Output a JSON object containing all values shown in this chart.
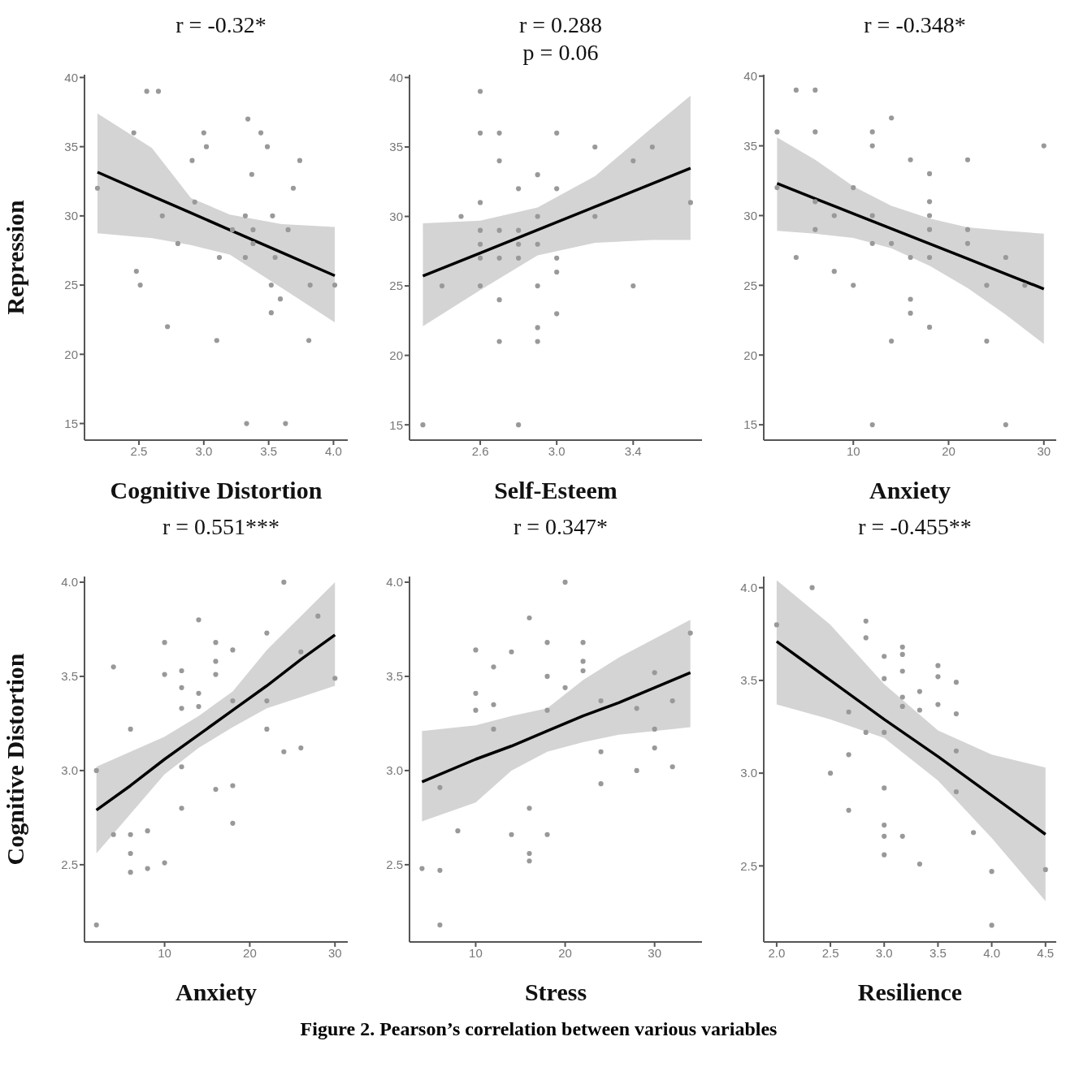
{
  "chart_data": [
    {
      "type": "scatter",
      "ylabel": "Repression",
      "xlabel": "Cognitive Distortion",
      "annotations": [
        "r = -0.32*"
      ],
      "xlim": [
        2.08,
        4.11
      ],
      "xticks": [
        2.5,
        {
          "value": 3,
          "label": "3.0"
        },
        3.5,
        {
          "value": 4,
          "label": "4.0"
        }
      ],
      "ylim": [
        13.8,
        40.2
      ],
      "yticks": [
        15,
        20,
        25,
        30,
        35,
        40
      ],
      "series": [
        {
          "type": "line",
          "color": "#000000",
          "line_style": "solid",
          "x": [
            2.18,
            2.6,
            2.9,
            3.2,
            3.6,
            4.01
          ],
          "values": [
            33.16,
            31.44,
            30.22,
            28.99,
            27.36,
            25.68
          ],
          "lower": [
            28.75,
            28.4,
            27.9,
            27.2,
            24.8,
            22.3
          ],
          "upper": [
            37.4,
            34.9,
            31.3,
            30.1,
            29.4,
            29.2
          ]
        },
        {
          "marker": "circle",
          "color": "#999999",
          "x": [
            2.56,
            2.65,
            3.34,
            2.46,
            3.0,
            3.44,
            3.02,
            3.49,
            2.91,
            3.74,
            3.37,
            2.18,
            3.69,
            2.93,
            2.68,
            3.32,
            3.53,
            3.22,
            3.38,
            3.65,
            2.8,
            3.38,
            3.12,
            3.32,
            3.55,
            2.48,
            2.51,
            3.52,
            3.82,
            4.01,
            3.59,
            3.52,
            2.72,
            3.1,
            3.81,
            3.33,
            3.63
          ],
          "values": [
            39,
            39,
            37,
            36,
            36,
            36,
            35,
            35,
            34,
            34,
            33,
            32,
            32,
            31,
            30,
            30,
            30,
            29,
            29,
            29,
            28,
            28,
            27,
            27,
            27,
            26,
            25,
            25,
            25,
            25,
            24,
            23,
            22,
            21,
            21,
            15,
            15
          ]
        }
      ]
    },
    {
      "type": "scatter",
      "xlabel": "Self-Esteem",
      "annotations": [
        "r = 0.288",
        "p = 0.06"
      ],
      "xlim": [
        2.23,
        3.76
      ],
      "xticks": [
        2.6,
        {
          "value": 3,
          "label": "3.0"
        },
        3.4
      ],
      "ylim": [
        13.9,
        40.2
      ],
      "yticks": [
        15,
        20,
        25,
        30,
        35,
        40
      ],
      "series": [
        {
          "type": "line",
          "color": "#000000",
          "line_style": "solid",
          "x": [
            2.3,
            2.6,
            2.9,
            3.2,
            3.5,
            3.7
          ],
          "values": [
            25.71,
            27.37,
            29.03,
            30.69,
            32.36,
            33.47
          ],
          "lower": [
            22.1,
            24.7,
            27.2,
            28.1,
            28.3,
            28.3
          ],
          "upper": [
            29.5,
            29.7,
            30.65,
            32.9,
            36.4,
            38.7
          ]
        },
        {
          "marker": "circle",
          "color": "#999999",
          "x": [
            2.6,
            2.6,
            2.7,
            3.0,
            3.2,
            3.5,
            2.7,
            3.4,
            2.9,
            2.8,
            3.0,
            2.6,
            3.7,
            2.5,
            2.9,
            3.2,
            2.6,
            2.7,
            2.8,
            2.6,
            2.8,
            2.9,
            2.6,
            2.7,
            2.8,
            3.0,
            3.0,
            2.4,
            2.6,
            2.9,
            3.4,
            2.7,
            3.0,
            2.9,
            2.7,
            2.9,
            2.3,
            2.8
          ],
          "values": [
            39,
            36,
            36,
            36,
            35,
            35,
            34,
            34,
            33,
            32,
            32,
            31,
            31,
            30,
            30,
            30,
            29,
            29,
            29,
            28,
            28,
            28,
            27,
            27,
            27,
            27,
            26,
            25,
            25,
            25,
            25,
            24,
            23,
            22,
            21,
            21,
            15,
            15
          ]
        }
      ]
    },
    {
      "type": "scatter",
      "xlabel": "Anxiety",
      "annotations": [
        "r = -0.348*"
      ],
      "xlim": [
        0.6,
        31.3
      ],
      "xticks": [
        10,
        20,
        30
      ],
      "ylim": [
        13.9,
        40.1
      ],
      "yticks": [
        15,
        20,
        25,
        30,
        35,
        40
      ],
      "series": [
        {
          "type": "line",
          "color": "#000000",
          "line_style": "solid",
          "x": [
            2,
            6,
            10,
            14,
            18,
            22,
            26,
            30
          ],
          "values": [
            32.3,
            31.22,
            30.14,
            29.06,
            27.98,
            26.9,
            25.82,
            24.74
          ],
          "lower": [
            28.9,
            28.7,
            28.4,
            27.65,
            26.4,
            24.8,
            22.9,
            20.8
          ],
          "upper": [
            35.6,
            34.0,
            32.1,
            30.7,
            29.8,
            29.15,
            28.9,
            28.7
          ]
        },
        {
          "marker": "circle",
          "color": "#999999",
          "x": [
            4,
            6,
            14,
            2,
            6,
            12,
            12,
            30,
            16,
            22,
            18,
            2,
            10,
            6,
            18,
            8,
            12,
            18,
            6,
            18,
            22,
            12,
            14,
            22,
            4,
            16,
            18,
            26,
            8,
            10,
            24,
            28,
            16,
            16,
            18,
            14,
            24,
            12,
            26
          ],
          "values": [
            39,
            39,
            37,
            36,
            36,
            36,
            35,
            35,
            34,
            34,
            33,
            32,
            32,
            31,
            31,
            30,
            30,
            30,
            29,
            29,
            29,
            28,
            28,
            28,
            27,
            27,
            27,
            27,
            26,
            25,
            25,
            25,
            24,
            23,
            22,
            21,
            21,
            15,
            15
          ]
        }
      ]
    },
    {
      "type": "scatter",
      "ylabel": "Cognitive Distortion",
      "xlabel": "Anxiety",
      "annotations": [
        "r = 0.551***"
      ],
      "xlim": [
        0.6,
        31.5
      ],
      "xticks": [
        10,
        20,
        30
      ],
      "ylim": [
        2.09,
        4.03
      ],
      "yticks": [
        {
          "value": 2.5,
          "label": "2.5"
        },
        {
          "value": 3,
          "label": "3.0"
        },
        {
          "value": 3.5,
          "label": "3.5"
        },
        {
          "value": 4,
          "label": "4.0"
        }
      ],
      "series": [
        {
          "type": "line",
          "color": "#000000",
          "line_style": "solid",
          "x": [
            2,
            6,
            10,
            14,
            18,
            22,
            26,
            30
          ],
          "values": [
            2.79,
            2.92,
            3.06,
            3.19,
            3.32,
            3.45,
            3.59,
            3.72
          ],
          "lower": [
            2.56,
            2.77,
            2.98,
            3.12,
            3.23,
            3.33,
            3.39,
            3.45
          ],
          "upper": [
            3.02,
            3.1,
            3.18,
            3.29,
            3.42,
            3.64,
            3.82,
            4.0
          ]
        },
        {
          "marker": "circle",
          "color": "#999999",
          "x": [
            24,
            14,
            28,
            22,
            10,
            16,
            18,
            16,
            26,
            4,
            10,
            12,
            16,
            30,
            12,
            14,
            18,
            22,
            12,
            14,
            6,
            22,
            24,
            26,
            2,
            12,
            16,
            18,
            12,
            18,
            4,
            6,
            8,
            6,
            10,
            8,
            6,
            2
          ],
          "values": [
            4.0,
            3.8,
            3.82,
            3.73,
            3.68,
            3.68,
            3.64,
            3.58,
            3.63,
            3.55,
            3.51,
            3.53,
            3.51,
            3.49,
            3.44,
            3.41,
            3.37,
            3.37,
            3.33,
            3.34,
            3.22,
            3.22,
            3.1,
            3.12,
            3.0,
            3.02,
            2.9,
            2.92,
            2.8,
            2.72,
            2.66,
            2.66,
            2.68,
            2.56,
            2.51,
            2.48,
            2.46,
            2.18
          ]
        }
      ]
    },
    {
      "type": "scatter",
      "xlabel": "Stress",
      "annotations": [
        "r = 0.347*"
      ],
      "xlim": [
        2.6,
        35.3
      ],
      "xticks": [
        10,
        20,
        30
      ],
      "ylim": [
        2.09,
        4.03
      ],
      "yticks": [
        {
          "value": 2.5,
          "label": "2.5"
        },
        {
          "value": 3,
          "label": "3.0"
        },
        {
          "value": 3.5,
          "label": "3.5"
        },
        {
          "value": 4,
          "label": "4.0"
        }
      ],
      "series": [
        {
          "type": "line",
          "color": "#000000",
          "line_style": "solid",
          "x": [
            4,
            10,
            14,
            18,
            22,
            26,
            30,
            34
          ],
          "values": [
            2.94,
            3.06,
            3.13,
            3.21,
            3.29,
            3.36,
            3.44,
            3.52
          ],
          "lower": [
            2.73,
            2.83,
            3.0,
            3.1,
            3.15,
            3.19,
            3.21,
            3.23
          ],
          "upper": [
            3.21,
            3.24,
            3.29,
            3.33,
            3.48,
            3.6,
            3.7,
            3.8
          ]
        },
        {
          "marker": "circle",
          "color": "#999999",
          "x": [
            20,
            16,
            34,
            18,
            22,
            10,
            14,
            22,
            12,
            18,
            22,
            30,
            20,
            10,
            12,
            24,
            32,
            10,
            18,
            28,
            12,
            30,
            24,
            30,
            32,
            28,
            6,
            24,
            16,
            14,
            18,
            8,
            16,
            16,
            4,
            6,
            6
          ],
          "values": [
            4.0,
            3.81,
            3.73,
            3.68,
            3.68,
            3.64,
            3.63,
            3.58,
            3.55,
            3.5,
            3.53,
            3.52,
            3.44,
            3.41,
            3.35,
            3.37,
            3.37,
            3.32,
            3.32,
            3.33,
            3.22,
            3.22,
            3.1,
            3.12,
            3.02,
            3.0,
            2.91,
            2.93,
            2.8,
            2.66,
            2.66,
            2.68,
            2.56,
            2.52,
            2.48,
            2.47,
            2.18
          ]
        }
      ]
    },
    {
      "type": "scatter",
      "xlabel": "Resilience",
      "annotations": [
        "r = -0.455**",
        "Figure 2. Pearson’s correlation between various variables"
      ],
      "xlim": [
        1.88,
        4.6
      ],
      "xticks": [
        {
          "value": 2,
          "label": "2.0"
        },
        2.5,
        {
          "value": 3,
          "label": "3.0"
        },
        3.5,
        {
          "value": 4,
          "label": "4.0"
        },
        4.5
      ],
      "ylim": [
        2.09,
        4.06
      ],
      "yticks": [
        {
          "value": 2.5,
          "label": "2.5"
        },
        {
          "value": 3,
          "label": "3.0"
        },
        {
          "value": 3.5,
          "label": "3.5"
        },
        {
          "value": 4,
          "label": "4.0"
        }
      ],
      "series": [
        {
          "type": "line",
          "color": "#000000",
          "line_style": "solid",
          "x": [
            2.0,
            2.5,
            3.0,
            3.5,
            4.0,
            4.5
          ],
          "values": [
            3.71,
            3.5,
            3.29,
            3.09,
            2.88,
            2.67
          ],
          "lower": [
            3.37,
            3.29,
            3.19,
            2.96,
            2.65,
            2.31
          ],
          "upper": [
            4.04,
            3.8,
            3.48,
            3.23,
            3.1,
            3.03
          ]
        },
        {
          "marker": "circle",
          "color": "#999999",
          "x": [
            2.33,
            2.0,
            2.83,
            2.83,
            3.17,
            3.17,
            3.0,
            3.5,
            3.17,
            3.5,
            3.0,
            3.67,
            3.33,
            3.17,
            3.5,
            3.17,
            3.33,
            2.67,
            3.67,
            2.83,
            3.0,
            3.67,
            2.67,
            2.5,
            3.0,
            3.67,
            2.67,
            3.0,
            3.83,
            3.0,
            3.17,
            3.0,
            3.33,
            4.0,
            4.5,
            4.0
          ],
          "values": [
            4.0,
            3.8,
            3.82,
            3.73,
            3.68,
            3.64,
            3.63,
            3.58,
            3.55,
            3.52,
            3.51,
            3.49,
            3.44,
            3.41,
            3.37,
            3.36,
            3.34,
            3.33,
            3.32,
            3.22,
            3.22,
            3.12,
            3.1,
            3.0,
            2.92,
            2.9,
            2.8,
            2.72,
            2.68,
            2.66,
            2.66,
            2.56,
            2.51,
            2.47,
            2.48,
            2.18
          ]
        }
      ]
    }
  ]
}
